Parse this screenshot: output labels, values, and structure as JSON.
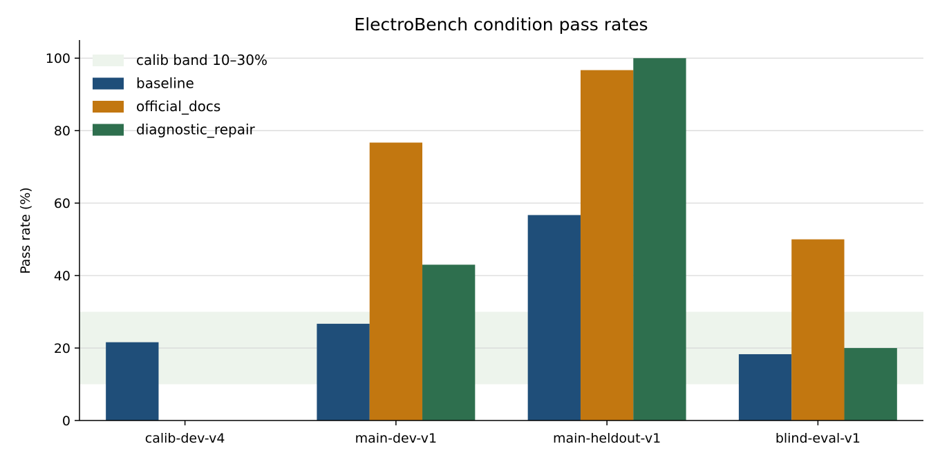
{
  "chart_data": {
    "type": "bar",
    "title": "ElectroBench condition pass rates",
    "xlabel": "",
    "ylabel": "Pass rate (%)",
    "ylim": [
      0,
      105
    ],
    "yticks": [
      0,
      20,
      40,
      60,
      80,
      100
    ],
    "grid": "horizontal",
    "legend": "top-left",
    "categories": [
      "calib-dev-v4",
      "main-dev-v1",
      "main-heldout-v1",
      "blind-eval-v1"
    ],
    "band": {
      "name": "calib band 10–30%",
      "from": 10,
      "to": 30,
      "color": "#edf4ec"
    },
    "series": [
      {
        "name": "baseline",
        "color": "#1f4e79",
        "values": [
          21.6,
          26.7,
          56.7,
          18.3
        ]
      },
      {
        "name": "official_docs",
        "color": "#c27710",
        "values": [
          null,
          76.7,
          96.7,
          50.0
        ]
      },
      {
        "name": "diagnostic_repair",
        "color": "#2e6f4e",
        "values": [
          null,
          43.0,
          100.0,
          20.0
        ]
      }
    ]
  }
}
